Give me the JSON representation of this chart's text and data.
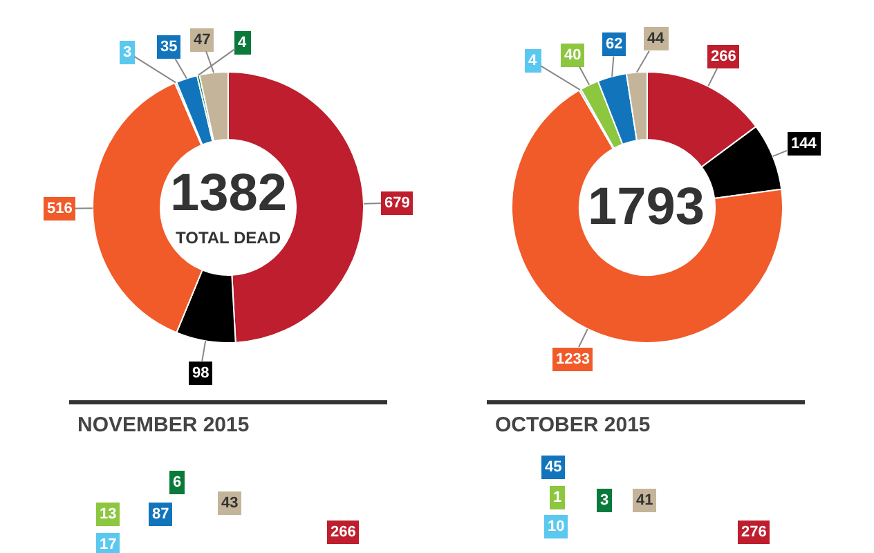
{
  "chart_data": [
    {
      "type": "donut",
      "categories": [
        null,
        null,
        null,
        null,
        null,
        null,
        null
      ],
      "values": [
        679,
        98,
        516,
        3,
        35,
        4,
        47
      ],
      "colors": [
        "#be1e2d",
        "#000000",
        "#f15a29",
        "#5bc8f0",
        "#1275bc",
        "#0a7a3c",
        "#c4b59a"
      ],
      "data_labels": true,
      "annotations": [
        "1382",
        "TOTAL DEAD"
      ]
    },
    {
      "type": "donut",
      "categories": [
        null,
        null,
        null,
        null,
        null,
        null,
        null
      ],
      "values": [
        266,
        144,
        1233,
        4,
        40,
        62,
        44
      ],
      "colors": [
        "#be1e2d",
        "#000000",
        "#f15a29",
        "#5bc8f0",
        "#8dc63f",
        "#1275bc",
        "#c4b59a"
      ],
      "data_labels": true,
      "annotations": [
        "1793"
      ]
    },
    {
      "type": "other",
      "title": "NOVEMBER 2015",
      "annotations": [
        "13",
        "17",
        "87",
        "6",
        "43",
        "266"
      ],
      "colors": [
        "#8dc63f",
        "#5bc8f0",
        "#1275bc",
        "#0a7a3c",
        "#c4b59a",
        "#be1e2d"
      ]
    },
    {
      "type": "other",
      "title": "OCTOBER 2015",
      "annotations": [
        "45",
        "1",
        "10",
        "3",
        "41",
        "276"
      ],
      "colors": [
        "#1275bc",
        "#8dc63f",
        "#5bc8f0",
        "#0a7a3c",
        "#c4b59a",
        "#be1e2d"
      ]
    }
  ]
}
